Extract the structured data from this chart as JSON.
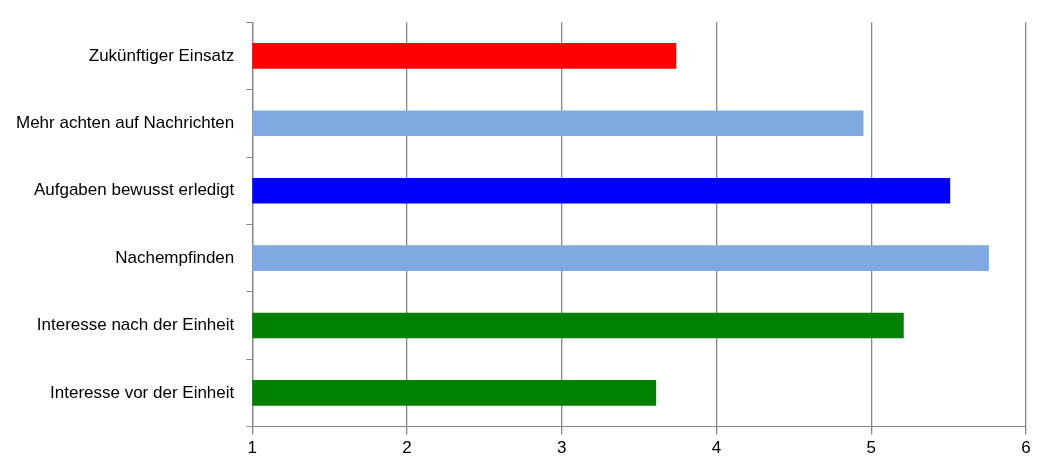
{
  "chart_data": {
    "type": "bar",
    "orientation": "horizontal",
    "categories": [
      "Zukünftiger Einsatz",
      "Mehr achten auf Nachrichten",
      "Aufgaben bewusst erledigt",
      "Nachempfinden",
      "Interesse nach der Einheit",
      "Interesse vor der Einheit"
    ],
    "values": [
      3.74,
      4.95,
      5.51,
      5.76,
      5.21,
      3.61
    ],
    "colors": [
      "#ff0000",
      "#7fa9e0",
      "#0000ff",
      "#7fa9e0",
      "#008000",
      "#008000"
    ],
    "xlim": [
      1,
      6
    ],
    "xticks": [
      1,
      2,
      3,
      4,
      5,
      6
    ],
    "grid": "x"
  }
}
